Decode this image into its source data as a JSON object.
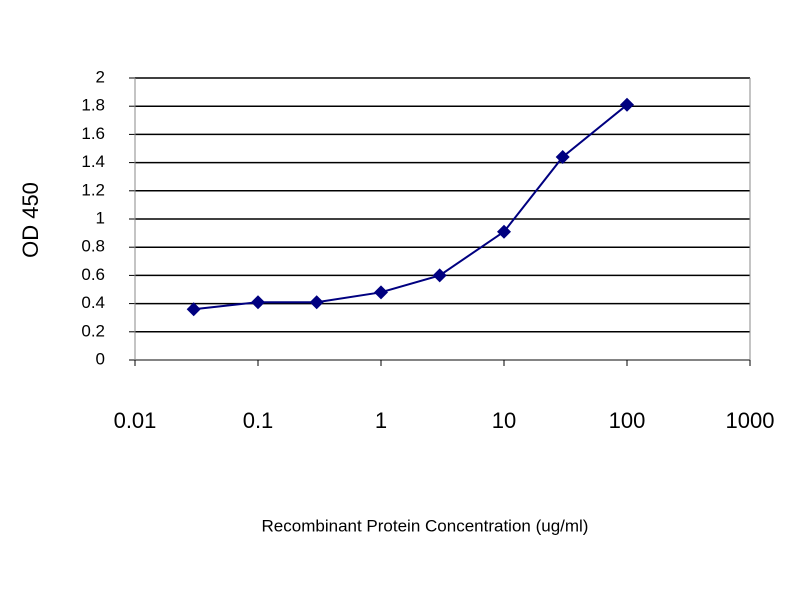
{
  "chart_data": {
    "type": "line",
    "x_label": "Recombinant Protein Concentration (ug/ml)",
    "y_label": "OD 450",
    "x": [
      0.03,
      0.1,
      0.3,
      1,
      3,
      10,
      30,
      100
    ],
    "series": [
      {
        "color": "#000080",
        "values": [
          0.36,
          0.41,
          0.41,
          0.48,
          0.6,
          0.91,
          1.44,
          1.81
        ]
      }
    ],
    "x_log": true,
    "xlim": [
      0.01,
      1000
    ],
    "xticks": [
      0.01,
      0.1,
      1,
      10,
      100,
      1000
    ],
    "ylim": [
      0,
      2
    ],
    "yticks": [
      0,
      0.2,
      0.4,
      0.6,
      0.8,
      1,
      1.2,
      1.4,
      1.6,
      1.8,
      2
    ],
    "grid": true
  }
}
